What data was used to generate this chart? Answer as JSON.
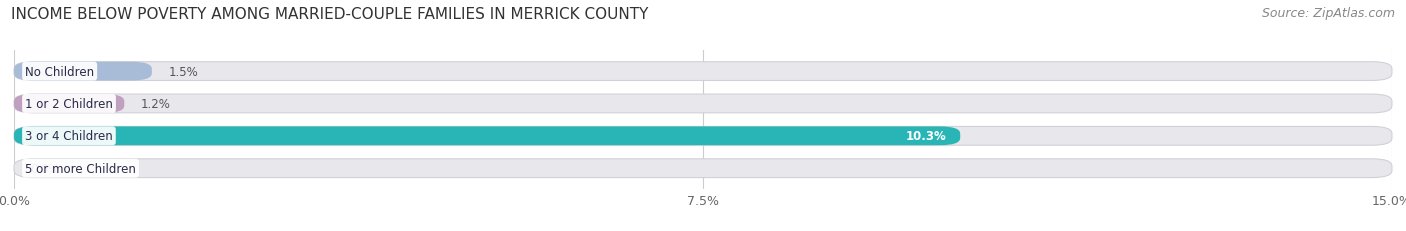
{
  "title": "INCOME BELOW POVERTY AMONG MARRIED-COUPLE FAMILIES IN MERRICK COUNTY",
  "source": "Source: ZipAtlas.com",
  "categories": [
    "No Children",
    "1 or 2 Children",
    "3 or 4 Children",
    "5 or more Children"
  ],
  "values": [
    1.5,
    1.2,
    10.3,
    0.0
  ],
  "bar_colors": [
    "#a8bcd8",
    "#c0a0c0",
    "#29b5b5",
    "#a8a8d8"
  ],
  "bar_bg_color": "#e8e8ec",
  "bar_border_color": "#d0d0d8",
  "xlim": [
    0,
    15.0
  ],
  "xticks": [
    0.0,
    7.5,
    15.0
  ],
  "xticklabels": [
    "0.0%",
    "7.5%",
    "15.0%"
  ],
  "title_fontsize": 11,
  "source_fontsize": 9,
  "label_fontsize": 8.5,
  "tick_fontsize": 9,
  "background_color": "#ffffff",
  "bar_height": 0.58,
  "label_color_dark": "#555555",
  "label_color_light": "#ffffff",
  "value_threshold": 5.0
}
